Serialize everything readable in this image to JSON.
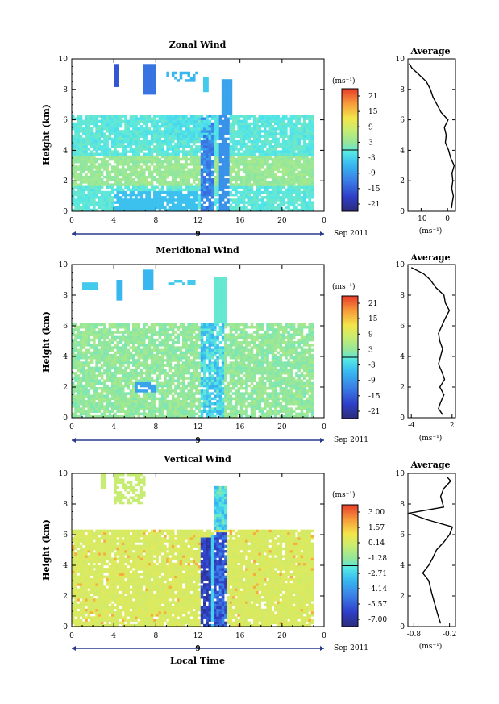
{
  "chart_data": [
    {
      "type": "heatmap",
      "title": "Zonal Wind",
      "ylabel": "Height (km)",
      "ylim": [
        0,
        10
      ],
      "xlim": [
        0,
        24
      ],
      "xticks": [
        "0",
        "4",
        "8",
        "12",
        "16",
        "20",
        "0"
      ],
      "yticks": [
        "0",
        "2",
        "4",
        "6",
        "8",
        "10"
      ],
      "date_label": "9",
      "date_suffix": "Sep 2011",
      "colorbar": {
        "unit": "(ms⁻¹)",
        "ticks": [
          "21",
          "15",
          "9",
          "3",
          "-3",
          "-9",
          "-15",
          "-21"
        ],
        "range": [
          -24,
          24
        ]
      },
      "profile": {
        "title": "Average",
        "xlabel": "(ms⁻¹)",
        "xticks": [
          "-10",
          "0"
        ],
        "xlim": [
          -15,
          3
        ],
        "ylim": [
          0,
          10
        ],
        "yticks": [
          "0",
          "2",
          "4",
          "6",
          "8",
          "10"
        ],
        "points": [
          [
            1.5,
            0.2
          ],
          [
            1.8,
            0.6
          ],
          [
            2.2,
            1.0
          ],
          [
            1.6,
            1.5
          ],
          [
            2.0,
            2.0
          ],
          [
            1.7,
            2.5
          ],
          [
            2.5,
            3.0
          ],
          [
            1.2,
            3.5
          ],
          [
            0.4,
            4.0
          ],
          [
            -0.8,
            4.5
          ],
          [
            -0.5,
            5.0
          ],
          [
            -1.2,
            5.5
          ],
          [
            0.2,
            6.0
          ],
          [
            -2.5,
            6.5
          ],
          [
            -4.0,
            7.0
          ],
          [
            -5.5,
            7.5
          ],
          [
            -6.5,
            8.0
          ],
          [
            -8.0,
            8.5
          ],
          [
            -11.0,
            9.0
          ],
          [
            -13.5,
            9.4
          ],
          [
            -14.5,
            9.7
          ]
        ]
      },
      "plot_kind": "zonal"
    },
    {
      "type": "heatmap",
      "title": "Meridional Wind",
      "ylabel": "Height (km)",
      "ylim": [
        0,
        10
      ],
      "xlim": [
        0,
        24
      ],
      "xticks": [
        "0",
        "4",
        "8",
        "12",
        "16",
        "20",
        "0"
      ],
      "yticks": [
        "0",
        "2",
        "4",
        "6",
        "8",
        "10"
      ],
      "date_label": "9",
      "date_suffix": "Sep 2011",
      "colorbar": {
        "unit": "(ms⁻¹)",
        "ticks": [
          "21",
          "15",
          "9",
          "3",
          "-3",
          "-9",
          "-15",
          "-21"
        ],
        "range": [
          -24,
          24
        ]
      },
      "profile": {
        "title": "Average",
        "xlabel": "(ms⁻¹)",
        "xticks": [
          "-4",
          "2"
        ],
        "xlim": [
          -4.5,
          2.5
        ],
        "ylim": [
          0,
          10
        ],
        "yticks": [
          "0",
          "2",
          "4",
          "6",
          "8",
          "10"
        ],
        "points": [
          [
            0.6,
            0.2
          ],
          [
            0.0,
            0.6
          ],
          [
            0.3,
            1.0
          ],
          [
            0.8,
            1.5
          ],
          [
            0.2,
            2.0
          ],
          [
            0.9,
            2.5
          ],
          [
            0.5,
            3.0
          ],
          [
            0.0,
            3.5
          ],
          [
            0.3,
            4.0
          ],
          [
            0.6,
            4.5
          ],
          [
            0.2,
            5.0
          ],
          [
            0.0,
            5.5
          ],
          [
            0.5,
            6.0
          ],
          [
            1.0,
            6.5
          ],
          [
            1.6,
            7.0
          ],
          [
            1.0,
            7.5
          ],
          [
            0.8,
            8.0
          ],
          [
            -0.4,
            8.5
          ],
          [
            -1.2,
            9.0
          ],
          [
            -2.2,
            9.4
          ],
          [
            -4.0,
            9.8
          ]
        ]
      },
      "plot_kind": "meridional"
    },
    {
      "type": "heatmap",
      "title": "Vertical Wind",
      "ylabel": "Height (km)",
      "xlabel": "Local Time",
      "ylim": [
        0,
        10
      ],
      "xlim": [
        0,
        24
      ],
      "xticks": [
        "0",
        "4",
        "8",
        "12",
        "16",
        "20",
        "0"
      ],
      "yticks": [
        "0",
        "2",
        "4",
        "6",
        "8",
        "10"
      ],
      "date_label": "9",
      "date_suffix": "Sep 2011",
      "colorbar": {
        "unit": "(ms⁻¹)",
        "ticks": [
          "3.00",
          "1.57",
          "0.14",
          "-1.28",
          "-2.71",
          "-4.14",
          "-5.57",
          "-7.00"
        ],
        "range": [
          -7.0,
          3.0
        ]
      },
      "profile": {
        "title": "Average",
        "xlabel": "(ms⁻¹)",
        "xticks": [
          "-0.8",
          "-0.2"
        ],
        "xlim": [
          -0.9,
          -0.1
        ],
        "ylim": [
          0,
          10
        ],
        "yticks": [
          "0",
          "2",
          "4",
          "6",
          "8",
          "10"
        ],
        "points": [
          [
            -0.35,
            0.2
          ],
          [
            -0.4,
            0.8
          ],
          [
            -0.45,
            1.5
          ],
          [
            -0.5,
            2.2
          ],
          [
            -0.55,
            3.0
          ],
          [
            -0.65,
            3.5
          ],
          [
            -0.55,
            4.0
          ],
          [
            -0.48,
            4.5
          ],
          [
            -0.42,
            5.0
          ],
          [
            -0.3,
            5.5
          ],
          [
            -0.2,
            6.0
          ],
          [
            -0.15,
            6.5
          ],
          [
            -0.6,
            7.0
          ],
          [
            -0.88,
            7.4
          ],
          [
            -0.3,
            7.8
          ],
          [
            -0.35,
            8.5
          ],
          [
            -0.3,
            9.0
          ],
          [
            -0.18,
            9.5
          ],
          [
            -0.25,
            9.8
          ]
        ]
      },
      "plot_kind": "vertical"
    }
  ]
}
